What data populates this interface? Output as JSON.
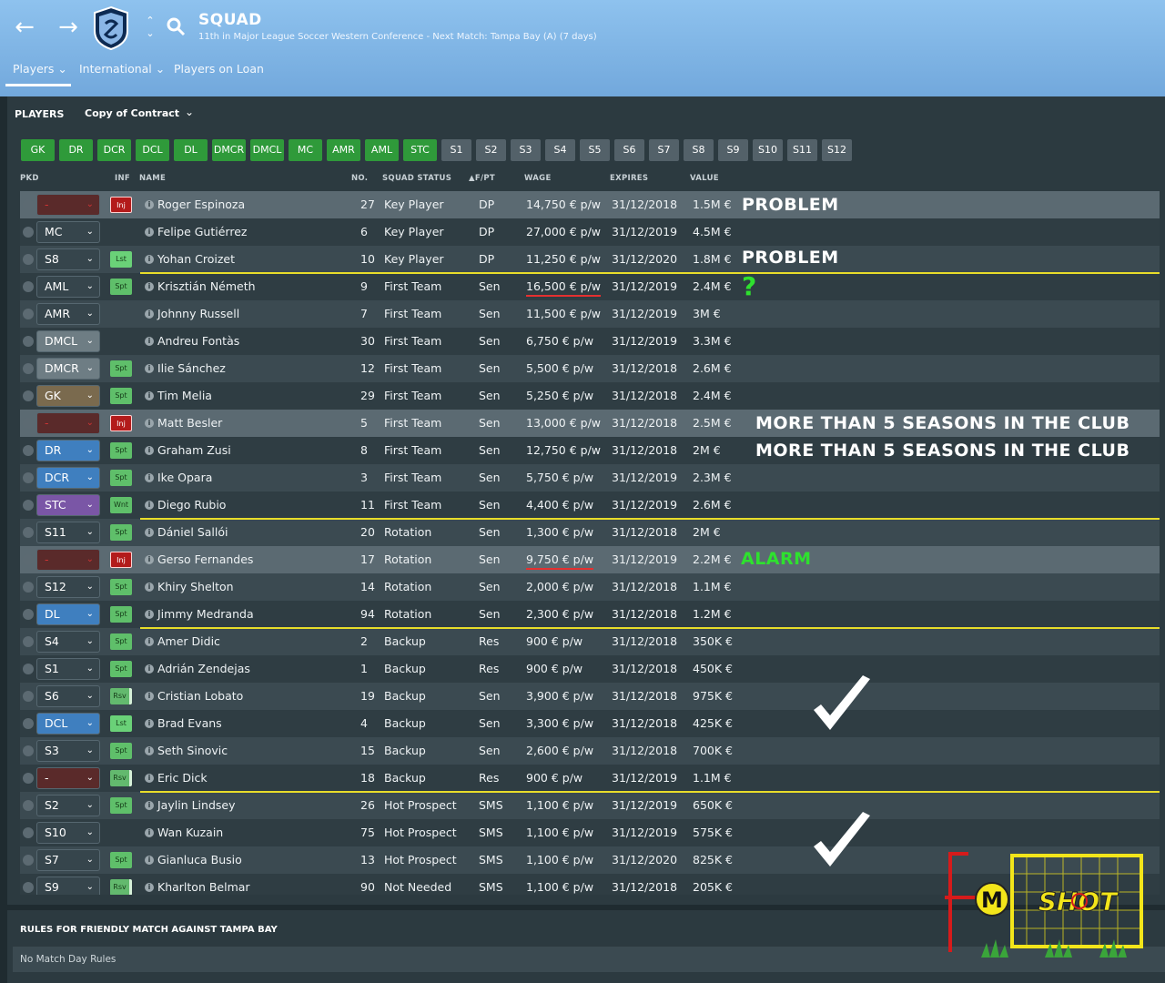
{
  "header": {
    "title": "SQUAD",
    "subtitle": "11th in Major League Soccer Western Conference - Next Match: Tampa Bay (A) (7 days)",
    "tabs": [
      "Players",
      "International",
      "Players on Loan"
    ]
  },
  "panel": {
    "title": "PLAYERS",
    "view": "Copy of Contract"
  },
  "position_buttons": [
    "GK",
    "DR",
    "DCR",
    "DCL",
    "DL",
    "DMCR",
    "DMCL",
    "MC",
    "AMR",
    "AML",
    "STC",
    "S1",
    "S2",
    "S3",
    "S4",
    "S5",
    "S6",
    "S7",
    "S8",
    "S9",
    "S10",
    "S11",
    "S12"
  ],
  "columns": {
    "pkd": "PKD",
    "inf": "INF",
    "name": "NAME",
    "no": "NO.",
    "squad_status": "SQUAD STATUS",
    "fpt": "F/PT",
    "wage": "WAGE",
    "expires": "EXPIRES",
    "value": "VALUE"
  },
  "players": [
    {
      "pos": "-",
      "inf": "Inj",
      "name": "Roger Espinoza",
      "no": "27",
      "status": "Key Player",
      "fpt": "DP",
      "wage": "14,750 € p/w",
      "expires": "31/12/2018",
      "value": "1.5M €"
    },
    {
      "pos": "MC",
      "inf": "",
      "name": "Felipe Gutiérrez",
      "no": "6",
      "status": "Key Player",
      "fpt": "DP",
      "wage": "27,000 € p/w",
      "expires": "31/12/2019",
      "value": "4.5M €"
    },
    {
      "pos": "S8",
      "inf": "Lst",
      "name": "Yohan Croizet",
      "no": "10",
      "status": "Key Player",
      "fpt": "DP",
      "wage": "11,250 € p/w",
      "expires": "31/12/2020",
      "value": "1.8M €"
    },
    {
      "pos": "AML",
      "inf": "Spt",
      "name": "Krisztián Németh",
      "no": "9",
      "status": "First Team",
      "fpt": "Sen",
      "wage": "16,500 € p/w",
      "expires": "31/12/2019",
      "value": "2.4M €"
    },
    {
      "pos": "AMR",
      "inf": "",
      "name": "Johnny Russell",
      "no": "7",
      "status": "First Team",
      "fpt": "Sen",
      "wage": "11,500 € p/w",
      "expires": "31/12/2019",
      "value": "3M €"
    },
    {
      "pos": "DMCL",
      "inf": "",
      "name": "Andreu Fontàs",
      "no": "30",
      "status": "First Team",
      "fpt": "Sen",
      "wage": "6,750 € p/w",
      "expires": "31/12/2019",
      "value": "3.3M €"
    },
    {
      "pos": "DMCR",
      "inf": "Spt",
      "name": "Ilie Sánchez",
      "no": "12",
      "status": "First Team",
      "fpt": "Sen",
      "wage": "5,500 € p/w",
      "expires": "31/12/2018",
      "value": "2.6M €"
    },
    {
      "pos": "GK",
      "inf": "Spt",
      "name": "Tim Melia",
      "no": "29",
      "status": "First Team",
      "fpt": "Sen",
      "wage": "5,250 € p/w",
      "expires": "31/12/2018",
      "value": "2.4M €"
    },
    {
      "pos": "-",
      "inf": "Inj",
      "name": "Matt Besler",
      "no": "5",
      "status": "First Team",
      "fpt": "Sen",
      "wage": "13,000 € p/w",
      "expires": "31/12/2018",
      "value": "2.5M €"
    },
    {
      "pos": "DR",
      "inf": "Spt",
      "name": "Graham Zusi",
      "no": "8",
      "status": "First Team",
      "fpt": "Sen",
      "wage": "12,750 € p/w",
      "expires": "31/12/2018",
      "value": "2M €"
    },
    {
      "pos": "DCR",
      "inf": "Spt",
      "name": "Ike Opara",
      "no": "3",
      "status": "First Team",
      "fpt": "Sen",
      "wage": "5,750 € p/w",
      "expires": "31/12/2019",
      "value": "2.3M €"
    },
    {
      "pos": "STC",
      "inf": "Wnt",
      "name": "Diego Rubio",
      "no": "11",
      "status": "First Team",
      "fpt": "Sen",
      "wage": "4,400 € p/w",
      "expires": "31/12/2019",
      "value": "2.6M €"
    },
    {
      "pos": "S11",
      "inf": "Spt",
      "name": "Dániel Sallói",
      "no": "20",
      "status": "Rotation",
      "fpt": "Sen",
      "wage": "1,300 € p/w",
      "expires": "31/12/2018",
      "value": "2M €"
    },
    {
      "pos": "-",
      "inf": "Inj",
      "name": "Gerso Fernandes",
      "no": "17",
      "status": "Rotation",
      "fpt": "Sen",
      "wage": "9,750 € p/w",
      "expires": "31/12/2019",
      "value": "2.2M €"
    },
    {
      "pos": "S12",
      "inf": "Spt",
      "name": "Khiry Shelton",
      "no": "14",
      "status": "Rotation",
      "fpt": "Sen",
      "wage": "2,000 € p/w",
      "expires": "31/12/2018",
      "value": "1.1M €"
    },
    {
      "pos": "DL",
      "inf": "Spt",
      "name": "Jimmy Medranda",
      "no": "94",
      "status": "Rotation",
      "fpt": "Sen",
      "wage": "2,300 € p/w",
      "expires": "31/12/2018",
      "value": "1.2M €"
    },
    {
      "pos": "S4",
      "inf": "Spt",
      "name": "Amer Didic",
      "no": "2",
      "status": "Backup",
      "fpt": "Res",
      "wage": "900 € p/w",
      "expires": "31/12/2018",
      "value": "350K €"
    },
    {
      "pos": "S1",
      "inf": "Spt",
      "name": "Adrián Zendejas",
      "no": "1",
      "status": "Backup",
      "fpt": "Res",
      "wage": "900 € p/w",
      "expires": "31/12/2018",
      "value": "450K €"
    },
    {
      "pos": "S6",
      "inf": "Rsv",
      "name": "Cristian Lobato",
      "no": "19",
      "status": "Backup",
      "fpt": "Sen",
      "wage": "3,900 € p/w",
      "expires": "31/12/2018",
      "value": "975K €"
    },
    {
      "pos": "DCL",
      "inf": "Lst",
      "name": "Brad Evans",
      "no": "4",
      "status": "Backup",
      "fpt": "Sen",
      "wage": "3,300 € p/w",
      "expires": "31/12/2018",
      "value": "425K €"
    },
    {
      "pos": "S3",
      "inf": "Spt",
      "name": "Seth Sinovic",
      "no": "15",
      "status": "Backup",
      "fpt": "Sen",
      "wage": "2,600 € p/w",
      "expires": "31/12/2018",
      "value": "700K €"
    },
    {
      "pos": "-",
      "inf": "Rsv",
      "name": "Eric Dick",
      "no": "18",
      "status": "Backup",
      "fpt": "Res",
      "wage": "900 € p/w",
      "expires": "31/12/2019",
      "value": "1.1M €"
    },
    {
      "pos": "S2",
      "inf": "Spt",
      "name": "Jaylin Lindsey",
      "no": "26",
      "status": "Hot Prospect",
      "fpt": "SMS",
      "wage": "1,100 € p/w",
      "expires": "31/12/2019",
      "value": "650K €"
    },
    {
      "pos": "S10",
      "inf": "",
      "name": "Wan Kuzain",
      "no": "75",
      "status": "Hot Prospect",
      "fpt": "SMS",
      "wage": "1,100 € p/w",
      "expires": "31/12/2019",
      "value": "575K €"
    },
    {
      "pos": "S7",
      "inf": "Spt",
      "name": "Gianluca Busio",
      "no": "13",
      "status": "Hot Prospect",
      "fpt": "SMS",
      "wage": "1,100 € p/w",
      "expires": "31/12/2020",
      "value": "825K €"
    },
    {
      "pos": "S9",
      "inf": "Rsv",
      "name": "Kharlton Belmar",
      "no": "90",
      "status": "Not Needed",
      "fpt": "SMS",
      "wage": "1,100 € p/w",
      "expires": "31/12/2018",
      "value": "205K €"
    }
  ],
  "annotations": {
    "problem": "PROBLEM",
    "question": "?",
    "seasons": "MORE THAN 5 SEASONS IN THE CLUB",
    "alarm": "ALARM"
  },
  "rules": {
    "title": "RULES FOR FRIENDLY MATCH AGAINST TAMPA BAY",
    "body": "No Match Day Rules"
  },
  "logo": {
    "text_left": "M",
    "text_right": "SHOT"
  },
  "colors": {
    "header_bg": "#7fb5e6",
    "panel_bg": "#2c3a40",
    "position_green": "#2f9a3a",
    "position_grey": "#536169",
    "separator_yellow": "#e8dd2a",
    "alarm_green": "#2ee12e",
    "injury_red": "#b31b1b"
  }
}
